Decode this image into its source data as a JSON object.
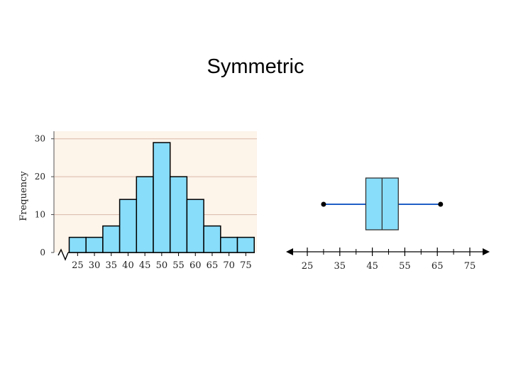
{
  "title": "Symmetric",
  "chart_data": [
    {
      "type": "bar",
      "title": "",
      "ylabel": "Frequency",
      "xlabel": "",
      "categories": [
        "25",
        "30",
        "35",
        "40",
        "45",
        "50",
        "55",
        "60",
        "65",
        "70",
        "75"
      ],
      "values": [
        4,
        4,
        7,
        14,
        20,
        29,
        20,
        14,
        7,
        4,
        4
      ],
      "yticks": [
        0,
        10,
        20,
        30
      ],
      "ylim": [
        0,
        32
      ],
      "grid": true,
      "colors": {
        "bar": "#88ddfa",
        "background": "#fdf4ea",
        "grid": "#d9b8a8"
      }
    },
    {
      "type": "boxplot",
      "title": "",
      "xticks": [
        25,
        35,
        45,
        55,
        65,
        75
      ],
      "xlim": [
        20,
        80
      ],
      "min": 30,
      "q1": 43,
      "median": 48,
      "q3": 53,
      "max": 66,
      "colors": {
        "box": "#88ddfa",
        "whisker": "#1f5fc6"
      }
    }
  ]
}
